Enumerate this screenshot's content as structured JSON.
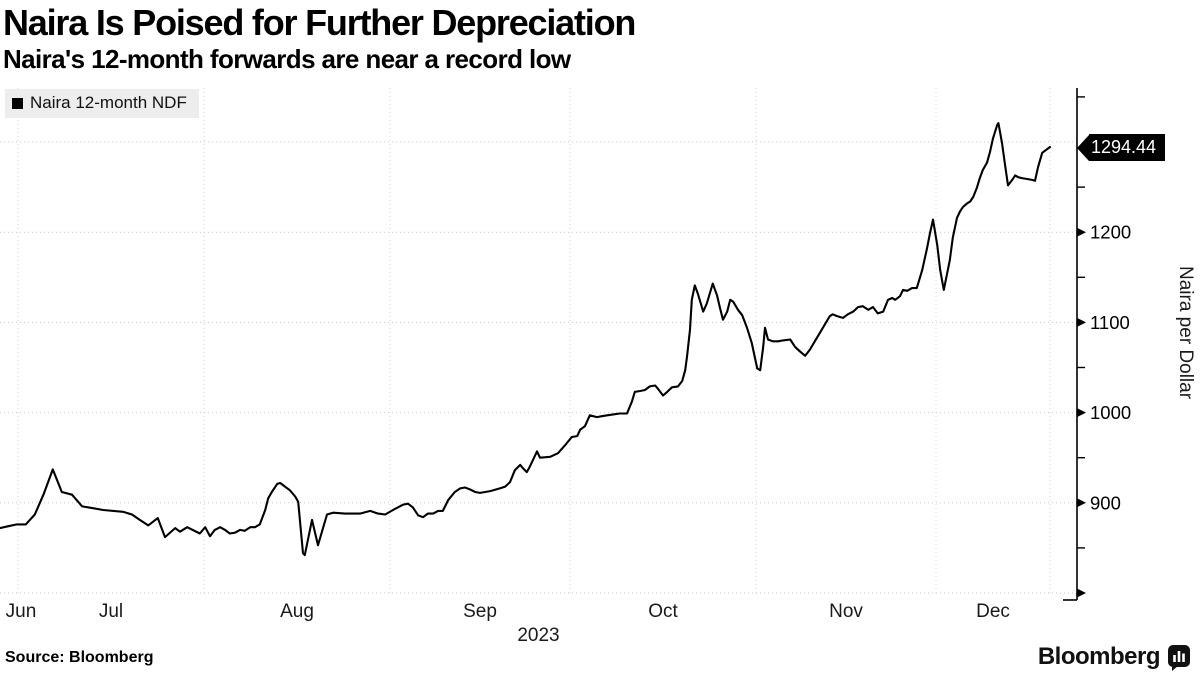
{
  "header": {
    "title": "Naira Is Poised for Further Depreciation",
    "subtitle": "Naira's 12-month forwards are near a record low"
  },
  "legend": {
    "label": "Naira 12-month NDF",
    "swatch_color": "#000000"
  },
  "current_value": {
    "label": "1294.44"
  },
  "y_axis": {
    "title": "Naira per Dollar",
    "tick_labels": [
      "900",
      "1000",
      "1100",
      "1200"
    ]
  },
  "x_axis": {
    "month_labels": [
      "Jun",
      "Jul",
      "Aug",
      "Sep",
      "Oct",
      "Nov",
      "Dec"
    ],
    "year_label": "2023"
  },
  "source": {
    "label": "Source:  Bloomberg"
  },
  "branding": {
    "wordmark": "Bloomberg",
    "icon": "bloomberg-bars-bubble-icon"
  },
  "colors": {
    "line": "#000000",
    "gridline": "#c9c9c9",
    "gridline_vertical": "#d6d6d6",
    "axis": "#000000",
    "legend_bg": "#ededed",
    "value_label_bg": "#000000",
    "value_label_text": "#ffffff"
  },
  "chart_data": {
    "type": "line",
    "series_name": "Naira 12-month NDF",
    "x_start_date": "2023-06-28",
    "x_unit": "days_since_start",
    "x_end_day": 175,
    "month_start_days": [
      3,
      34,
      65,
      95,
      126,
      156
    ],
    "ylim": [
      800,
      1360
    ],
    "ylabel": "Naira per Dollar",
    "y_gridlines": [
      800,
      900,
      1000,
      1100,
      1200,
      1300
    ],
    "y_tick_major": [
      800,
      900,
      1000,
      1100,
      1200
    ],
    "y_tick_labeled": [
      900,
      1000,
      1100,
      1200
    ],
    "y_tick_minor": [
      850,
      950,
      1050,
      1150,
      1250,
      1350
    ],
    "grid": true,
    "legend_position": "top-left",
    "last_value": 1294.44,
    "points": [
      [
        0,
        872
      ],
      [
        1.3,
        874
      ],
      [
        2.8,
        876
      ],
      [
        4.3,
        876
      ],
      [
        5.8,
        887
      ],
      [
        7.3,
        910
      ],
      [
        8.8,
        937
      ],
      [
        10.3,
        912
      ],
      [
        12,
        909
      ],
      [
        13.7,
        896
      ],
      [
        15.5,
        894
      ],
      [
        17.2,
        892
      ],
      [
        20.5,
        890
      ],
      [
        22,
        887
      ],
      [
        23.3,
        881
      ],
      [
        24.7,
        875
      ],
      [
        26.3,
        883
      ],
      [
        27.5,
        862
      ],
      [
        29.2,
        872
      ],
      [
        30,
        868
      ],
      [
        31.2,
        873
      ],
      [
        33.3,
        866
      ],
      [
        34.2,
        873
      ],
      [
        35,
        863
      ],
      [
        35.8,
        870
      ],
      [
        36.7,
        873
      ],
      [
        37.5,
        870
      ],
      [
        38.3,
        866
      ],
      [
        39.2,
        867
      ],
      [
        40,
        870
      ],
      [
        40.8,
        869
      ],
      [
        41.7,
        873
      ],
      [
        42.5,
        873
      ],
      [
        43.3,
        876
      ],
      [
        44.2,
        892
      ],
      [
        44.7,
        905
      ],
      [
        45.3,
        912
      ],
      [
        46.2,
        921
      ],
      [
        46.7,
        922
      ],
      [
        47.5,
        918
      ],
      [
        48.3,
        914
      ],
      [
        49.2,
        907
      ],
      [
        49.7,
        901
      ],
      [
        50.5,
        844
      ],
      [
        50.8,
        842
      ],
      [
        52,
        881
      ],
      [
        53,
        853
      ],
      [
        54.5,
        887
      ],
      [
        55.5,
        889
      ],
      [
        57.5,
        888
      ],
      [
        60,
        888
      ],
      [
        61.7,
        891
      ],
      [
        63,
        888
      ],
      [
        64.2,
        887
      ],
      [
        65.5,
        892
      ],
      [
        67.2,
        898
      ],
      [
        68,
        899
      ],
      [
        68.8,
        895
      ],
      [
        69.7,
        886
      ],
      [
        70.5,
        884
      ],
      [
        71.3,
        888
      ],
      [
        72.2,
        888
      ],
      [
        73,
        891
      ],
      [
        73.8,
        891
      ],
      [
        74.7,
        903
      ],
      [
        75.8,
        912
      ],
      [
        76.7,
        916
      ],
      [
        77.5,
        917
      ],
      [
        78.3,
        915
      ],
      [
        79.2,
        912
      ],
      [
        80,
        911
      ],
      [
        81.7,
        913
      ],
      [
        83.3,
        916
      ],
      [
        84.2,
        918
      ],
      [
        85,
        923
      ],
      [
        85.8,
        936
      ],
      [
        86.7,
        942
      ],
      [
        87.2,
        938
      ],
      [
        87.8,
        934
      ],
      [
        88.3,
        940
      ],
      [
        89.5,
        957
      ],
      [
        90,
        950
      ],
      [
        91.7,
        951
      ],
      [
        93,
        955
      ],
      [
        94.2,
        964
      ],
      [
        95.3,
        973
      ],
      [
        96.2,
        974
      ],
      [
        96.7,
        981
      ],
      [
        97.5,
        985
      ],
      [
        98.3,
        997
      ],
      [
        99.5,
        995
      ],
      [
        100.3,
        996
      ],
      [
        101.2,
        997
      ],
      [
        102.2,
        998
      ],
      [
        103.3,
        999
      ],
      [
        104.5,
        999
      ],
      [
        105.3,
        1012
      ],
      [
        105.8,
        1023
      ],
      [
        106.7,
        1024
      ],
      [
        107.5,
        1025
      ],
      [
        108.3,
        1029
      ],
      [
        109.2,
        1030
      ],
      [
        109.7,
        1026
      ],
      [
        110.5,
        1019
      ],
      [
        111.2,
        1023
      ],
      [
        112,
        1028
      ],
      [
        113,
        1029
      ],
      [
        113.7,
        1035
      ],
      [
        114.2,
        1047
      ],
      [
        114.5,
        1062
      ],
      [
        115,
        1092
      ],
      [
        115.3,
        1125
      ],
      [
        115.8,
        1141
      ],
      [
        116.3,
        1132
      ],
      [
        117.2,
        1112
      ],
      [
        117.8,
        1121
      ],
      [
        118.3,
        1132
      ],
      [
        118.8,
        1143
      ],
      [
        119.5,
        1130
      ],
      [
        120,
        1116
      ],
      [
        120.5,
        1103
      ],
      [
        121.2,
        1112
      ],
      [
        121.7,
        1125
      ],
      [
        122.2,
        1123
      ],
      [
        123,
        1114
      ],
      [
        123.7,
        1108
      ],
      [
        124.5,
        1094
      ],
      [
        125.3,
        1077
      ],
      [
        126.2,
        1049
      ],
      [
        126.7,
        1047
      ],
      [
        127.2,
        1073
      ],
      [
        127.5,
        1094
      ],
      [
        128,
        1081
      ],
      [
        128.8,
        1079
      ],
      [
        129.7,
        1079
      ],
      [
        130.5,
        1080
      ],
      [
        131.7,
        1081
      ],
      [
        132.5,
        1073
      ],
      [
        133.3,
        1068
      ],
      [
        134.2,
        1063
      ],
      [
        135,
        1070
      ],
      [
        135.8,
        1079
      ],
      [
        136.7,
        1089
      ],
      [
        137.5,
        1098
      ],
      [
        138.3,
        1107
      ],
      [
        138.8,
        1109
      ],
      [
        139.5,
        1107
      ],
      [
        140.5,
        1105
      ],
      [
        141.3,
        1109
      ],
      [
        142.2,
        1112
      ],
      [
        143,
        1117
      ],
      [
        143.8,
        1118
      ],
      [
        144.7,
        1114
      ],
      [
        145.5,
        1117
      ],
      [
        146.3,
        1110
      ],
      [
        147.2,
        1112
      ],
      [
        148,
        1125
      ],
      [
        148.7,
        1127
      ],
      [
        149.2,
        1125
      ],
      [
        150,
        1129
      ],
      [
        150.5,
        1136
      ],
      [
        151.2,
        1135
      ],
      [
        152,
        1138
      ],
      [
        152.8,
        1138
      ],
      [
        153.7,
        1158
      ],
      [
        154.5,
        1182
      ],
      [
        155,
        1199
      ],
      [
        155.5,
        1214
      ],
      [
        156.2,
        1186
      ],
      [
        156.7,
        1158
      ],
      [
        157.3,
        1136
      ],
      [
        158.3,
        1169
      ],
      [
        158.8,
        1194
      ],
      [
        159.5,
        1216
      ],
      [
        160,
        1223
      ],
      [
        160.5,
        1228
      ],
      [
        161.2,
        1232
      ],
      [
        161.7,
        1234
      ],
      [
        162.2,
        1239
      ],
      [
        162.8,
        1249
      ],
      [
        163.3,
        1260
      ],
      [
        163.8,
        1269
      ],
      [
        164.5,
        1277
      ],
      [
        165,
        1289
      ],
      [
        165.5,
        1304
      ],
      [
        166.2,
        1319
      ],
      [
        166.4,
        1321
      ],
      [
        167,
        1299
      ],
      [
        167.5,
        1275
      ],
      [
        168,
        1252
      ],
      [
        168.7,
        1258
      ],
      [
        169.2,
        1263
      ],
      [
        169.7,
        1261
      ],
      [
        170.3,
        1260
      ],
      [
        171.2,
        1259
      ],
      [
        172,
        1258
      ],
      [
        172.5,
        1257
      ],
      [
        173,
        1272
      ],
      [
        173.7,
        1288
      ],
      [
        175,
        1294.44
      ]
    ]
  }
}
